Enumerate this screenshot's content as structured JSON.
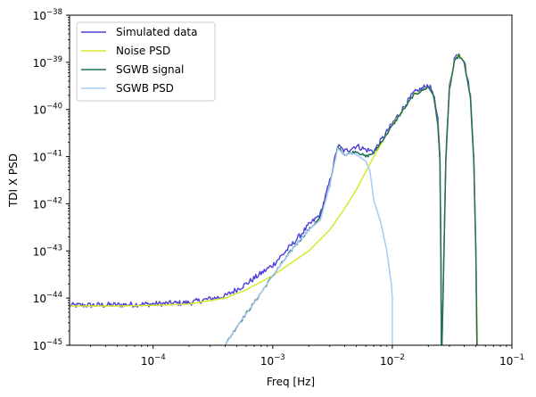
{
  "chart_data": {
    "type": "line",
    "title": "",
    "xlabel": "Freq [Hz]",
    "ylabel": "TDI X PSD",
    "xscale": "log",
    "yscale": "log",
    "xlim": [
      2e-05,
      0.1
    ],
    "ylim": [
      1e-45,
      1e-38
    ],
    "grid": false,
    "legend_position": "upper-left",
    "x_ticks": [
      {
        "value": 0.0001,
        "base": "10",
        "exp": "−4"
      },
      {
        "value": 0.001,
        "base": "10",
        "exp": "−3"
      },
      {
        "value": 0.01,
        "base": "10",
        "exp": "−2"
      },
      {
        "value": 0.1,
        "base": "10",
        "exp": "−1"
      }
    ],
    "y_ticks": [
      {
        "value": 1e-45,
        "base": "10",
        "exp": "−45"
      },
      {
        "value": 1e-44,
        "base": "10",
        "exp": "−44"
      },
      {
        "value": 1e-43,
        "base": "10",
        "exp": "−43"
      },
      {
        "value": 1e-42,
        "base": "10",
        "exp": "−42"
      },
      {
        "value": 1e-41,
        "base": "10",
        "exp": "−41"
      },
      {
        "value": 1e-40,
        "base": "10",
        "exp": "−40"
      },
      {
        "value": 1e-39,
        "base": "10",
        "exp": "−39"
      },
      {
        "value": 1e-38,
        "base": "10",
        "exp": "−38"
      }
    ],
    "series": [
      {
        "name": "Simulated data",
        "color": "#4b3fdb",
        "noise": 0.06,
        "points": [
          [
            2e-05,
            7e-45
          ],
          [
            5e-05,
            7.2e-45
          ],
          [
            0.0001,
            7.5e-45
          ],
          [
            0.0002,
            8e-45
          ],
          [
            0.0004,
            1.1e-44
          ],
          [
            0.0006,
            2e-44
          ],
          [
            0.001,
            5e-44
          ],
          [
            0.0015,
            1.5e-43
          ],
          [
            0.002,
            3.5e-43
          ],
          [
            0.0025,
            6e-43
          ],
          [
            0.003,
            3e-42
          ],
          [
            0.0035,
            1.7e-41
          ],
          [
            0.004,
            1.3e-41
          ],
          [
            0.0045,
            1.5e-41
          ],
          [
            0.005,
            1.7e-41
          ],
          [
            0.006,
            1.4e-41
          ],
          [
            0.007,
            1.3e-41
          ],
          [
            0.01,
            5e-41
          ],
          [
            0.015,
            2.2e-40
          ],
          [
            0.02,
            3.3e-40
          ],
          [
            0.022,
            2.3e-40
          ],
          [
            0.024,
            6e-41
          ],
          [
            0.025,
            1e-41
          ],
          [
            0.0255,
            1e-43
          ],
          [
            0.0257,
            1e-45
          ],
          [
            0.026,
            1e-45
          ],
          [
            0.0265,
            1e-44
          ],
          [
            0.028,
            1e-41
          ],
          [
            0.03,
            3e-40
          ],
          [
            0.033,
            1.2e-39
          ],
          [
            0.036,
            1.6e-39
          ],
          [
            0.04,
            1.1e-39
          ],
          [
            0.045,
            2e-40
          ],
          [
            0.048,
            1e-41
          ],
          [
            0.05,
            1e-43
          ],
          [
            0.051,
            1e-45
          ]
        ]
      },
      {
        "name": "Noise PSD",
        "color": "#d8e82a",
        "noise": 0,
        "points": [
          [
            2e-05,
            6.8e-45
          ],
          [
            5e-05,
            6.8e-45
          ],
          [
            0.0001,
            7e-45
          ],
          [
            0.0002,
            7.5e-45
          ],
          [
            0.0004,
            1e-44
          ],
          [
            0.0006,
            1.5e-44
          ],
          [
            0.001,
            3e-44
          ],
          [
            0.002,
            1e-43
          ],
          [
            0.003,
            2.8e-43
          ],
          [
            0.004,
            8e-43
          ],
          [
            0.005,
            2e-42
          ],
          [
            0.007,
            1e-41
          ],
          [
            0.01,
            4.8e-41
          ],
          [
            0.015,
            2e-40
          ],
          [
            0.02,
            3e-40
          ],
          [
            0.022,
            2e-40
          ],
          [
            0.024,
            5e-41
          ],
          [
            0.025,
            8e-42
          ],
          [
            0.0255,
            5e-44
          ],
          [
            0.0257,
            1e-45
          ],
          [
            0.026,
            1e-45
          ],
          [
            0.0265,
            8e-45
          ],
          [
            0.028,
            8e-42
          ],
          [
            0.03,
            2.8e-40
          ],
          [
            0.033,
            1.1e-39
          ],
          [
            0.036,
            1.5e-39
          ],
          [
            0.04,
            1e-39
          ],
          [
            0.045,
            1.8e-40
          ],
          [
            0.048,
            8e-42
          ],
          [
            0.05,
            8e-44
          ],
          [
            0.0515,
            1e-45
          ]
        ]
      },
      {
        "name": "SGWB signal",
        "color": "#1f6f5a",
        "noise": 0.03,
        "points": [
          [
            0.0004,
            1e-45
          ],
          [
            0.0005,
            2.5e-45
          ],
          [
            0.0007,
            8e-45
          ],
          [
            0.001,
            3e-44
          ],
          [
            0.0015,
            1.2e-43
          ],
          [
            0.002,
            2.8e-43
          ],
          [
            0.0025,
            5e-43
          ],
          [
            0.003,
            2.5e-42
          ],
          [
            0.0035,
            1.6e-41
          ],
          [
            0.004,
            1.1e-41
          ],
          [
            0.0045,
            1.2e-41
          ],
          [
            0.005,
            1.3e-41
          ],
          [
            0.006,
            1e-41
          ],
          [
            0.007,
            1.2e-41
          ],
          [
            0.01,
            4.5e-41
          ],
          [
            0.015,
            2e-40
          ],
          [
            0.02,
            3e-40
          ],
          [
            0.022,
            2.1e-40
          ],
          [
            0.024,
            5e-41
          ],
          [
            0.025,
            8e-42
          ],
          [
            0.0255,
            5e-44
          ],
          [
            0.0257,
            1e-45
          ],
          [
            0.026,
            1e-45
          ],
          [
            0.0265,
            8e-45
          ],
          [
            0.028,
            8e-42
          ],
          [
            0.03,
            2.6e-40
          ],
          [
            0.033,
            1e-39
          ],
          [
            0.036,
            1.4e-39
          ],
          [
            0.04,
            9.5e-40
          ],
          [
            0.045,
            1.7e-40
          ],
          [
            0.048,
            8e-42
          ],
          [
            0.05,
            8e-44
          ],
          [
            0.051,
            1e-45
          ]
        ]
      },
      {
        "name": "SGWB PSD",
        "color": "#a9c8f5",
        "noise": 0,
        "points": [
          [
            0.0004,
            1e-45
          ],
          [
            0.0005,
            2.5e-45
          ],
          [
            0.0007,
            8e-45
          ],
          [
            0.001,
            3e-44
          ],
          [
            0.0015,
            1.2e-43
          ],
          [
            0.002,
            2.8e-43
          ],
          [
            0.0025,
            4.5e-43
          ],
          [
            0.003,
            2.5e-42
          ],
          [
            0.0035,
            1.5e-41
          ],
          [
            0.004,
            1.05e-41
          ],
          [
            0.0045,
            1.2e-41
          ],
          [
            0.005,
            1.1e-41
          ],
          [
            0.006,
            8e-42
          ],
          [
            0.0065,
            5e-42
          ],
          [
            0.007,
            1.2e-42
          ],
          [
            0.008,
            4e-43
          ],
          [
            0.009,
            1e-43
          ],
          [
            0.0098,
            2e-44
          ],
          [
            0.01,
            1e-44
          ],
          [
            0.01,
            1e-45
          ]
        ]
      }
    ]
  }
}
